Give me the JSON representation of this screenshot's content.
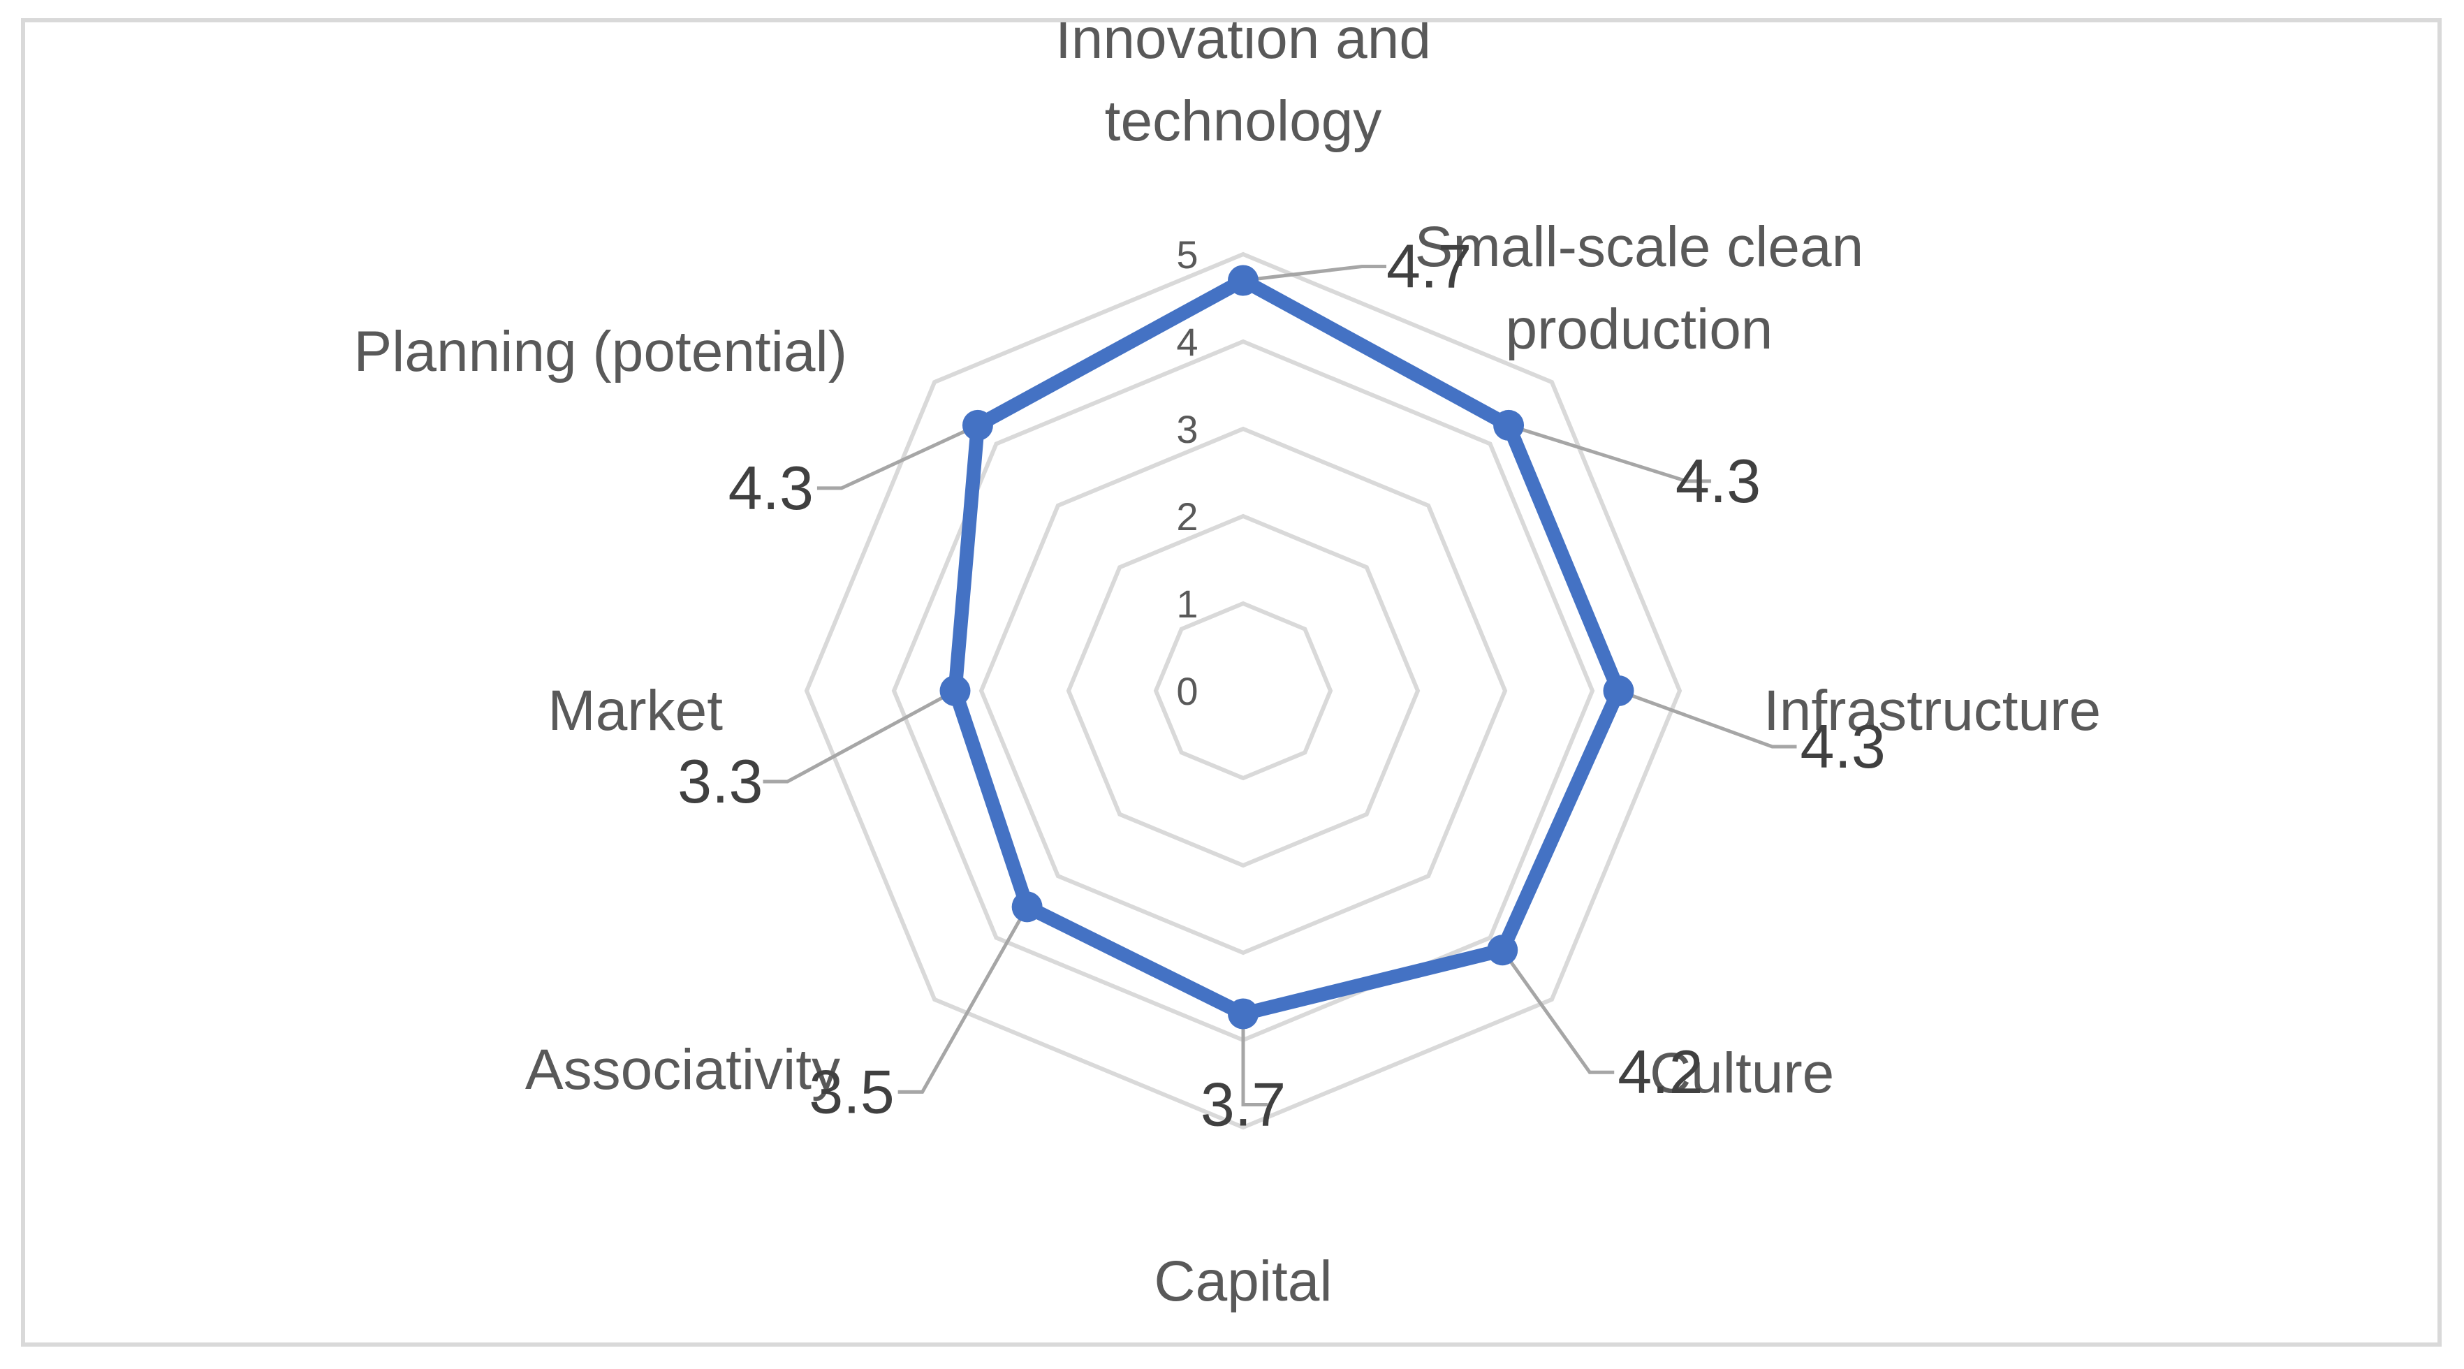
{
  "chart_data": {
    "type": "radar",
    "title": "",
    "categories": [
      "Innovation and technology",
      "Small-scale clean production",
      "Infrastructure",
      "Culture",
      "Capital",
      "Associativity",
      "Market",
      "Planning (potential)"
    ],
    "category_lines": [
      [
        "Innovation and",
        "technology"
      ],
      [
        "Small-scale clean",
        "production"
      ],
      [
        "Infrastructure"
      ],
      [
        "Culture"
      ],
      [
        "Capital"
      ],
      [
        "Associativity"
      ],
      [
        "Market"
      ],
      [
        "Planning (potential)"
      ]
    ],
    "values": [
      4.7,
      4.3,
      4.3,
      4.2,
      3.7,
      3.5,
      3.3,
      4.3
    ],
    "value_labels": [
      "4.7",
      "4.3",
      "4.3",
      "4.2",
      "3.7",
      "3.5",
      "3.3",
      "4.3"
    ],
    "r_ticks": [
      "0",
      "1",
      "2",
      "3",
      "4",
      "5"
    ],
    "rlim": [
      0,
      5
    ],
    "grid": true,
    "legend": "none",
    "series_color": "#4472c4",
    "grid_color": "#d9d9d9",
    "leader_color": "#a6a6a6"
  }
}
